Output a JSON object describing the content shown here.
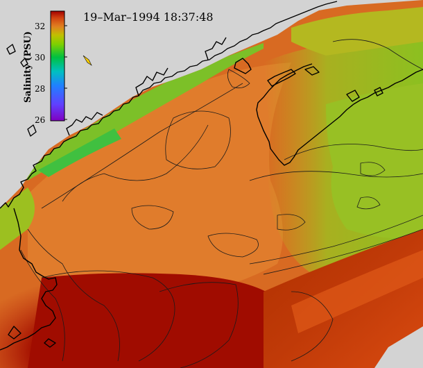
{
  "title": "19–Mar–1994 18:37:48",
  "colorbar": {
    "label": "Salinity (PSU)",
    "ticks": [
      "32",
      "30",
      "28",
      "26"
    ],
    "range": [
      26,
      33
    ]
  },
  "colors": {
    "land": "#d3d3d3",
    "deep_red": "#9a0a00",
    "red_orange": "#d24814",
    "orange": "#e07828",
    "olive": "#a8b020",
    "yellow_green": "#9cc420",
    "green": "#40c040"
  }
}
